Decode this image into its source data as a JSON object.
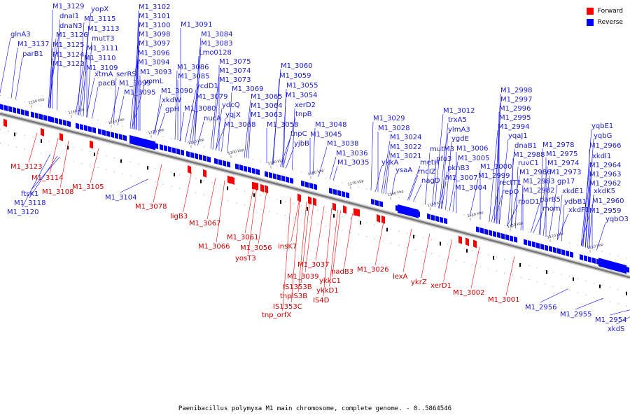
{
  "colors": {
    "forward": "#ff0000",
    "reverse": "#0000ff",
    "forward_label": "#cc0000",
    "reverse_label": "#1a1acc",
    "backbone": "#777777"
  },
  "legend": {
    "forward": "Forward",
    "reverse": "Reverse"
  },
  "caption": "Paenibacillus polymyxa M1 main chromosome, complete genome. - 0..5864546",
  "ticks": [
    "1250 kbp",
    "1240 kbp",
    "1230 kbp",
    "1220 kbp",
    "1210 kbp",
    "1200 kbp",
    "1190 kbp",
    "1180 kbp",
    "1170 kbp",
    "1160 kbp",
    "1150 kbp",
    "1140 kbp",
    "1130 kbp",
    "1120 kbp",
    "1110 kbp"
  ],
  "reverse_genes": [
    "glnA3",
    "M1_3137",
    "parB1",
    "M1_3129",
    "dnaI1",
    "dnaN3",
    "M1_3126",
    "M1_3125",
    "M1_3124",
    "M1_3122",
    "yopX",
    "M1_3115",
    "M1_3113",
    "mutT3",
    "M1_3111",
    "M1_3110",
    "M1_3109",
    "xtmA",
    "pacB",
    "serRS",
    "M1_3099",
    "M1_3095",
    "M1_3102",
    "M1_3101",
    "M1_3100",
    "M1_3098",
    "M1_3097",
    "M1_3096",
    "M1_3094",
    "M1_3093",
    "yomL",
    "M1_3090",
    "xkdW",
    "gpH",
    "M1_3091",
    "M1_3084",
    "M1_3083",
    "Lmo0128",
    "M1_3086",
    "M1_3085",
    "ycdD1",
    "M1_3079",
    "M1_3080",
    "nucA",
    "M1_3075",
    "M1_3074",
    "M1_3073",
    "M1_3069",
    "ydcQ",
    "yqjX",
    "M1_3068",
    "M1_3065",
    "M1_3064",
    "M1_3063",
    "M1_3058",
    "M1_3060",
    "M1_3059",
    "M1_3055",
    "M1_3054",
    "xerD2",
    "tnpB",
    "tnpC",
    "yjbB",
    "M1_3048",
    "M1_3045",
    "M1_3038",
    "M1_3036",
    "M1_3035",
    "M1_3029",
    "M1_3028",
    "M1_3024",
    "M1_3022",
    "M1_3021",
    "ykkA",
    "ysaA",
    "metH",
    "rncIZ",
    "nagD",
    "mutM3",
    "nfo3",
    "M1_3012",
    "trxA5",
    "ylmA3",
    "ygdE",
    "M1_3006",
    "M1_3005",
    "pknB3",
    "M1_3007",
    "M1_3004",
    "M1_3000",
    "M1_2999",
    "M1_2998",
    "M1_2997",
    "M1_2996",
    "M1_2995",
    "M1_2994",
    "yqaJ1",
    "dnaB1",
    "M1_2988",
    "ruvC1",
    "M1_2986",
    "rectT1",
    "repO",
    "M1_2983",
    "M1_2982",
    "rpoD1",
    "parB5",
    "mom",
    "M1_2978",
    "M1_2975",
    "M1_2974",
    "M1_2973",
    "gp17",
    "xkdE1",
    "ydbB1",
    "xkdF1",
    "yqbE1",
    "yqbG",
    "xkdI1",
    "M1_2966",
    "M1_2964",
    "M1_2963",
    "M1_2962",
    "xkdK5",
    "M1_2960",
    "M1_2959",
    "yqbO3",
    "ftsK1",
    "M1_3118",
    "M1_3120",
    "M1_3104",
    "M1_2956",
    "M1_2955",
    "M1_2954",
    "xkdS"
  ],
  "forward_genes": [
    "M1_3123",
    "M1_3114",
    "M1_3108",
    "M1_3105",
    "M1_3078",
    "ligB3",
    "M1_3067",
    "M1_3066",
    "M1_3061",
    "M1_3056",
    "yosT3",
    "insK7",
    "M1_3037",
    "M1_3039",
    "IS1353B",
    "tnpIS3B",
    "IS1353C",
    "tnp_orfX",
    "nadB3",
    "ykkC1",
    "ykkD1",
    "IS4D",
    "M1_3026",
    "lexA",
    "ykrZ",
    "xerD1",
    "M1_3002",
    "M1_3001"
  ]
}
